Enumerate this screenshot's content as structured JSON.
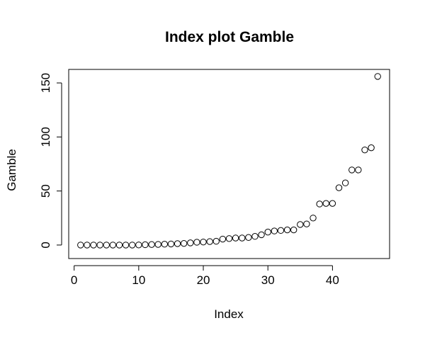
{
  "chart_data": {
    "type": "scatter",
    "title": "Index plot Gamble",
    "xlabel": "Index",
    "ylabel": "Gamble",
    "xlim": [
      -0.84,
      48.84
    ],
    "ylim": [
      -12.5,
      162.5
    ],
    "xticks": [
      0,
      10,
      20,
      30,
      40
    ],
    "yticks": [
      0,
      50,
      100,
      150
    ],
    "grid": false,
    "legend": "none",
    "x": [
      1,
      2,
      3,
      4,
      5,
      6,
      7,
      8,
      9,
      10,
      11,
      12,
      13,
      14,
      15,
      16,
      17,
      18,
      19,
      20,
      21,
      22,
      23,
      24,
      25,
      26,
      27,
      28,
      29,
      30,
      31,
      32,
      33,
      34,
      35,
      36,
      37,
      38,
      39,
      40,
      41,
      42,
      43,
      44,
      45,
      46,
      47
    ],
    "y": [
      0,
      0,
      0,
      0,
      0,
      0,
      0,
      0,
      0,
      0.1,
      0.3,
      0.5,
      0.6,
      0.8,
      1,
      1.3,
      1.5,
      2,
      2.6,
      2.8,
      3.2,
      3.5,
      5.5,
      6,
      6.5,
      6.5,
      7,
      8,
      9.5,
      12,
      13,
      13.5,
      14,
      14,
      19,
      19.5,
      25,
      38,
      38.5,
      38.5,
      53,
      57.5,
      69.5,
      69.5,
      88,
      90,
      156
    ]
  }
}
